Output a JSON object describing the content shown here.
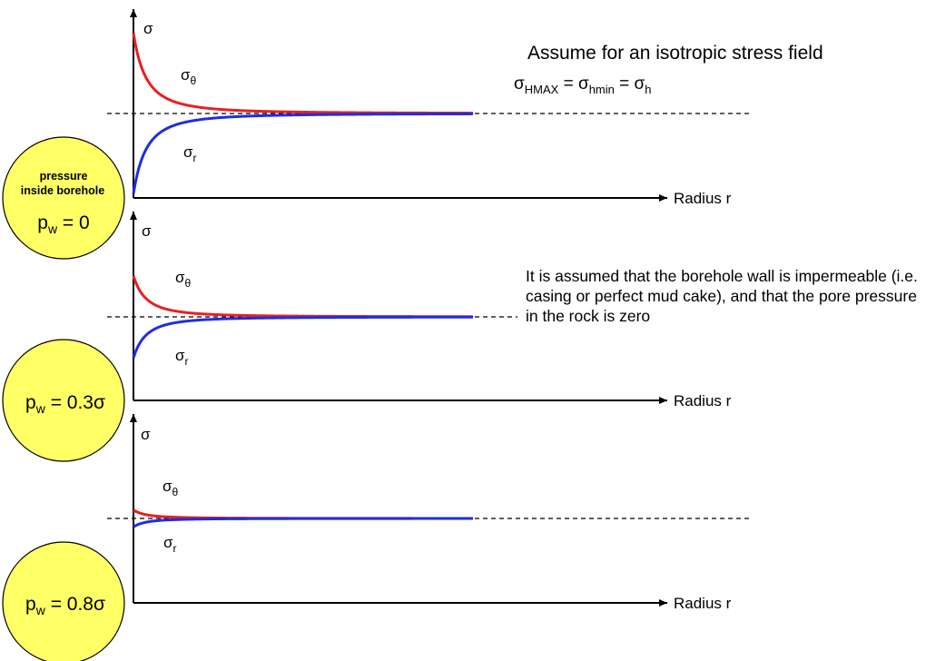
{
  "colors": {
    "sigma_theta": "#e82020",
    "sigma_r": "#1f2ee0",
    "circle_fill": "#ffff66",
    "axis": "#000000"
  },
  "notes": {
    "title": "Assume for an isotropic stress field",
    "equation": {
      "sym1": "σ",
      "sub1": "HMAX",
      "eq1": " = ",
      "sym2": "σ",
      "sub2": "hmin",
      "eq2": " = ",
      "sym3": "σ",
      "sub3": "h"
    },
    "paragraph": "It is assumed that the borehole wall is impermeable (i.e. casing or perfect mud cake), and that the pore pressure in the rock is zero"
  },
  "panels": [
    {
      "y_axis_label": "σ",
      "x_axis_label": "Radius r",
      "curve_labels": {
        "theta_sym": "σ",
        "theta_sub": "θ",
        "r_sym": "σ",
        "r_sub": "r"
      },
      "circle": {
        "caption_line1": "pressure",
        "caption_line2": "inside borehole",
        "p_sym": "p",
        "p_sub": "w",
        "p_value": " = 0"
      },
      "pw_fraction": 0.0
    },
    {
      "y_axis_label": "σ",
      "x_axis_label": "Radius r",
      "curve_labels": {
        "theta_sym": "σ",
        "theta_sub": "θ",
        "r_sym": "σ",
        "r_sub": "r"
      },
      "circle": {
        "caption_line1": "",
        "caption_line2": "",
        "p_sym": "p",
        "p_sub": "w",
        "p_value": " = 0.3σ"
      },
      "pw_fraction": 0.3
    },
    {
      "y_axis_label": "σ",
      "x_axis_label": "Radius r",
      "curve_labels": {
        "theta_sym": "σ",
        "theta_sub": "θ",
        "r_sym": "σ",
        "r_sub": "r"
      },
      "circle": {
        "caption_line1": "",
        "caption_line2": "",
        "p_sym": "p",
        "p_sub": "w",
        "p_value": " = 0.8σ"
      },
      "pw_fraction": 0.8
    }
  ]
}
